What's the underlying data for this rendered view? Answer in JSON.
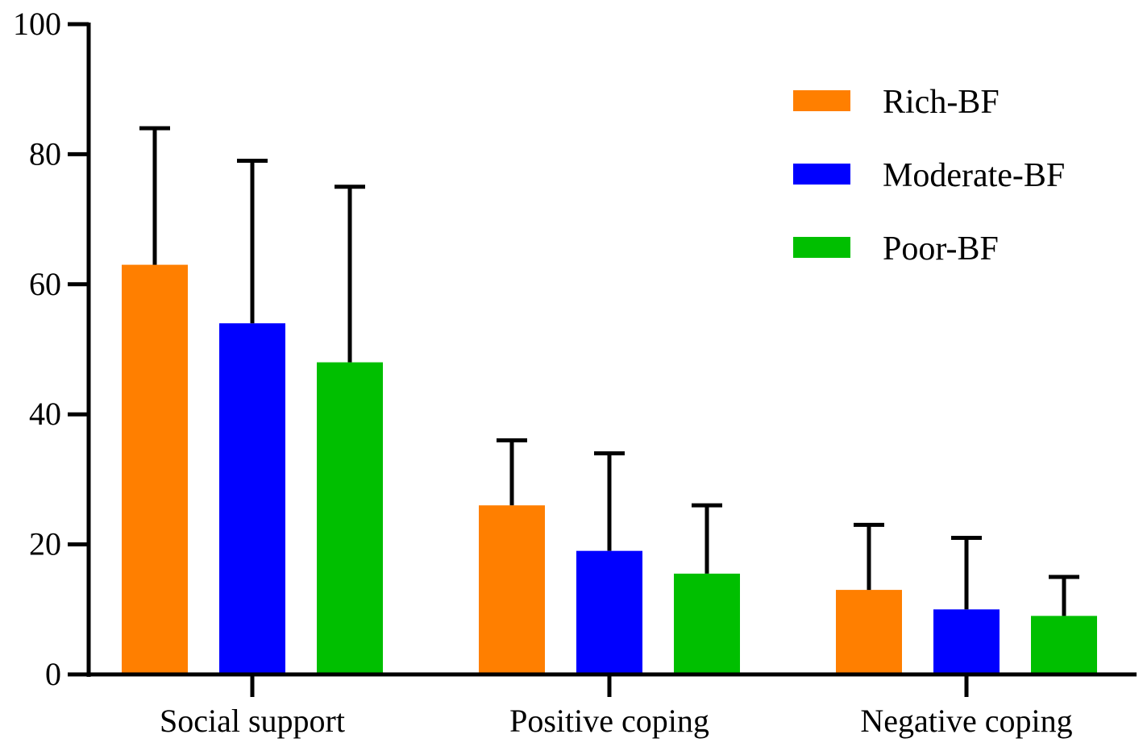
{
  "chart_data": {
    "type": "bar",
    "categories": [
      "Social support",
      "Positive coping",
      "Negative coping"
    ],
    "series": [
      {
        "name": "Rich-BF",
        "color": "#FF7F00",
        "values": [
          63,
          26,
          13
        ],
        "error": [
          21,
          10,
          10
        ]
      },
      {
        "name": "Moderate-BF",
        "color": "#0000FF",
        "values": [
          54,
          19,
          10
        ],
        "error": [
          25,
          15,
          11
        ]
      },
      {
        "name": "Poor-BF",
        "color": "#00BF00",
        "values": [
          48,
          15.5,
          9
        ],
        "error": [
          27,
          10.5,
          6
        ]
      }
    ],
    "ylim": [
      0,
      100
    ],
    "yticks": [
      0,
      20,
      40,
      60,
      80,
      100
    ],
    "ytick_labels": [
      "0",
      "20",
      "40",
      "60",
      "80",
      "100"
    ],
    "xlabel": "",
    "ylabel": "",
    "title": "",
    "legend_position": "top-right",
    "error_bars": "upper"
  }
}
